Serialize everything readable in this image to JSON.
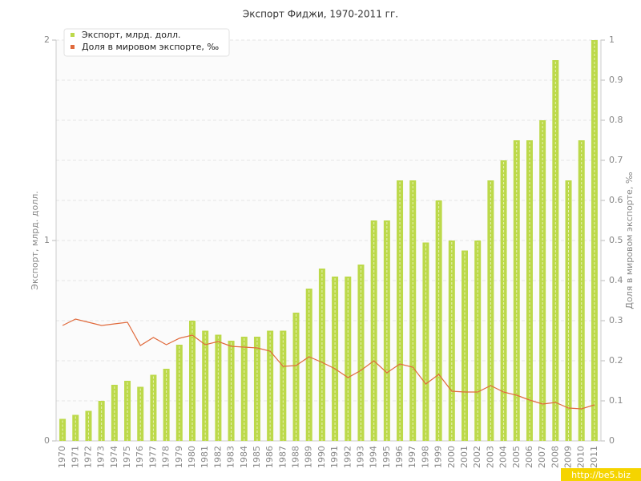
{
  "chart_data": {
    "type": "bar",
    "title": "Экспорт Фиджи, 1970-2011 гг.",
    "ylabel": "Экспорт, млрд. долл.",
    "y2label": "Доля в мировом экспорте, ‰",
    "watermark": "http://be5.biz",
    "legend": "top-left",
    "grid": true,
    "categories": [
      "1970",
      "1971",
      "1972",
      "1973",
      "1974",
      "1975",
      "1976",
      "1977",
      "1978",
      "1979",
      "1980",
      "1981",
      "1982",
      "1983",
      "1984",
      "1985",
      "1986",
      "1987",
      "1988",
      "1989",
      "1990",
      "1991",
      "1992",
      "1993",
      "1994",
      "1995",
      "1996",
      "1997",
      "1998",
      "1999",
      "2000",
      "2001",
      "2002",
      "2003",
      "2004",
      "2005",
      "2006",
      "2007",
      "2008",
      "2009",
      "2010",
      "2011"
    ],
    "series": [
      {
        "name": "Экспорт, млрд. долл.",
        "color": "#bcd94a",
        "type": "bar",
        "values": [
          0.11,
          0.13,
          0.15,
          0.2,
          0.28,
          0.3,
          0.27,
          0.33,
          0.36,
          0.48,
          0.6,
          0.55,
          0.53,
          0.5,
          0.52,
          0.52,
          0.55,
          0.55,
          0.64,
          0.76,
          0.86,
          0.82,
          0.82,
          0.88,
          1.1,
          1.1,
          1.3,
          1.3,
          0.99,
          1.2,
          1.0,
          0.95,
          1.0,
          1.3,
          1.4,
          1.5,
          1.5,
          1.6,
          1.9,
          1.3,
          1.5,
          2.0
        ]
      },
      {
        "name": "Доля в мировом экспорте, ‰",
        "color": "#e06a3c",
        "type": "line",
        "axis": "y2",
        "values": [
          0.288,
          0.304,
          0.296,
          0.288,
          0.292,
          0.296,
          0.238,
          0.258,
          0.24,
          0.256,
          0.264,
          0.24,
          0.248,
          0.236,
          0.234,
          0.232,
          0.224,
          0.186,
          0.188,
          0.21,
          0.196,
          0.18,
          0.158,
          0.176,
          0.2,
          0.17,
          0.192,
          0.184,
          0.142,
          0.166,
          0.124,
          0.122,
          0.122,
          0.138,
          0.122,
          0.114,
          0.102,
          0.092,
          0.096,
          0.082,
          0.08,
          0.09
        ]
      }
    ],
    "ylim": [
      0,
      2
    ],
    "yticks": [
      0,
      1,
      2
    ],
    "y2lim": [
      0,
      1
    ],
    "y2ticks": [
      0,
      0.1,
      0.2,
      0.3,
      0.4,
      0.5,
      0.6,
      0.7,
      0.8,
      0.9,
      1
    ]
  }
}
